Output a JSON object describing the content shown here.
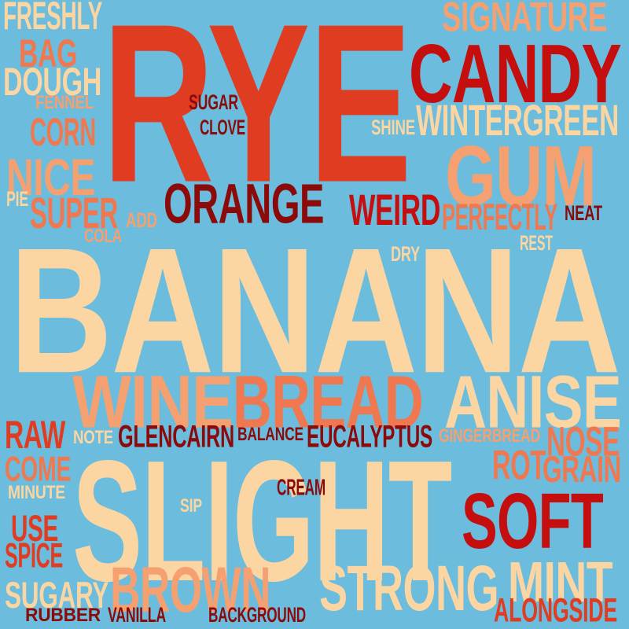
{
  "background": "#6bbcdd",
  "palette": {
    "dark_red": "#8b0a0a",
    "red": "#c50f0f",
    "orange_red": "#e03c22",
    "salmon": "#f07850",
    "light_salmon": "#f5a070",
    "peach": "#fbd5a2"
  },
  "words": [
    {
      "text": "BANANA",
      "color": "peach"
    },
    {
      "text": "SLIGHT",
      "color": "peach"
    },
    {
      "text": "RYE",
      "color": "orange_red"
    },
    {
      "text": "BREAD",
      "color": "salmon"
    },
    {
      "text": "WINE",
      "color": "light_salmon"
    },
    {
      "text": "ANISE",
      "color": "peach"
    },
    {
      "text": "GUM",
      "color": "light_salmon"
    },
    {
      "text": "CANDY",
      "color": "red"
    },
    {
      "text": "SOFT",
      "color": "red"
    },
    {
      "text": "STRONG",
      "color": "peach"
    },
    {
      "text": "BROWN",
      "color": "light_salmon"
    },
    {
      "text": "MINT",
      "color": "peach"
    },
    {
      "text": "ORANGE",
      "color": "dark_red"
    },
    {
      "text": "WINTERGREEN",
      "color": "peach"
    },
    {
      "text": "SIGNATURE",
      "color": "light_salmon"
    },
    {
      "text": "NICE",
      "color": "light_salmon"
    },
    {
      "text": "WEIRD",
      "color": "red"
    },
    {
      "text": "DOUGH",
      "color": "peach"
    },
    {
      "text": "NOSE",
      "color": "salmon"
    },
    {
      "text": "FRESHLY",
      "color": "peach"
    },
    {
      "text": "CORN",
      "color": "salmon"
    },
    {
      "text": "SUPER",
      "color": "salmon"
    },
    {
      "text": "BAG",
      "color": "salmon"
    },
    {
      "text": "PERFECTLY",
      "color": "salmon"
    },
    {
      "text": "ROT",
      "color": "salmon"
    },
    {
      "text": "GRAIN",
      "color": "salmon"
    },
    {
      "text": "EUCALYPTUS",
      "color": "dark_red"
    },
    {
      "text": "GLENCAIRN",
      "color": "dark_red"
    },
    {
      "text": "RAW",
      "color": "orange_red"
    },
    {
      "text": "COME",
      "color": "salmon"
    },
    {
      "text": "USE",
      "color": "orange_red"
    },
    {
      "text": "SPICE",
      "color": "orange_red"
    },
    {
      "text": "SUGARY",
      "color": "peach"
    },
    {
      "text": "ALONGSIDE",
      "color": "orange_red"
    },
    {
      "text": "SUGAR",
      "color": "dark_red"
    },
    {
      "text": "CLOVE",
      "color": "dark_red"
    },
    {
      "text": "SHINE",
      "color": "peach"
    },
    {
      "text": "FENNEL",
      "color": "light_salmon"
    },
    {
      "text": "PIE",
      "color": "peach"
    },
    {
      "text": "ADD",
      "color": "light_salmon"
    },
    {
      "text": "COLA",
      "color": "light_salmon"
    },
    {
      "text": "NEAT",
      "color": "dark_red"
    },
    {
      "text": "DRY",
      "color": "peach"
    },
    {
      "text": "REST",
      "color": "peach"
    },
    {
      "text": "NOTE",
      "color": "peach"
    },
    {
      "text": "BALANCE",
      "color": "dark_red"
    },
    {
      "text": "GINGERBREAD",
      "color": "light_salmon"
    },
    {
      "text": "MINUTE",
      "color": "peach"
    },
    {
      "text": "CREAM",
      "color": "dark_red"
    },
    {
      "text": "SIP",
      "color": "peach"
    },
    {
      "text": "RUBBER",
      "color": "dark_red"
    },
    {
      "text": "VANILLA",
      "color": "dark_red"
    },
    {
      "text": "BACKGROUND",
      "color": "dark_red"
    }
  ]
}
